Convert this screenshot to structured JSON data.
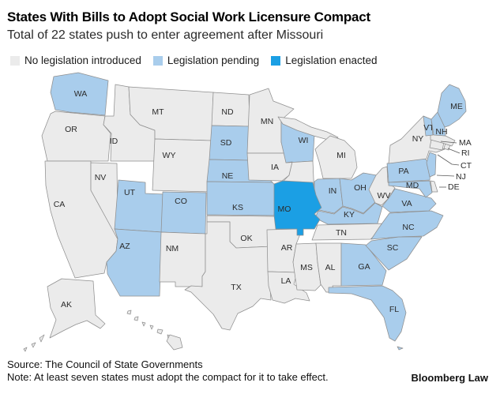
{
  "header": {
    "title": "States With Bills to Adopt Social Work Licensure Compact",
    "subtitle": "Total of 22 states push to enter agreement after Missouri"
  },
  "legend": {
    "items": [
      {
        "label": "No legislation introduced",
        "status": "none"
      },
      {
        "label": "Legislation pending",
        "status": "pending"
      },
      {
        "label": "Legislation enacted",
        "status": "enacted"
      }
    ]
  },
  "colors": {
    "none": "#ebebeb",
    "pending": "#a9cdec",
    "enacted": "#1b9fe4",
    "border": "#8f8f8f",
    "label": "#2b2b2b",
    "label_on_enacted": "#ffffff",
    "leader_line": "#5a5a5a"
  },
  "map": {
    "states": [
      {
        "abbr": "WA",
        "status": "pending"
      },
      {
        "abbr": "OR",
        "status": "none"
      },
      {
        "abbr": "CA",
        "status": "none"
      },
      {
        "abbr": "NV",
        "status": "none"
      },
      {
        "abbr": "ID",
        "status": "none"
      },
      {
        "abbr": "MT",
        "status": "none"
      },
      {
        "abbr": "WY",
        "status": "none"
      },
      {
        "abbr": "UT",
        "status": "pending"
      },
      {
        "abbr": "CO",
        "status": "pending"
      },
      {
        "abbr": "AZ",
        "status": "pending"
      },
      {
        "abbr": "NM",
        "status": "none"
      },
      {
        "abbr": "ND",
        "status": "none"
      },
      {
        "abbr": "SD",
        "status": "pending"
      },
      {
        "abbr": "NE",
        "status": "pending"
      },
      {
        "abbr": "KS",
        "status": "pending"
      },
      {
        "abbr": "OK",
        "status": "none"
      },
      {
        "abbr": "TX",
        "status": "none"
      },
      {
        "abbr": "MN",
        "status": "none"
      },
      {
        "abbr": "IA",
        "status": "none"
      },
      {
        "abbr": "AR",
        "status": "none"
      },
      {
        "abbr": "LA",
        "status": "none"
      },
      {
        "abbr": "WI",
        "status": "pending"
      },
      {
        "abbr": "IL",
        "status": "none"
      },
      {
        "abbr": "IN",
        "status": "pending"
      },
      {
        "abbr": "MI",
        "status": "none"
      },
      {
        "abbr": "OH",
        "status": "pending"
      },
      {
        "abbr": "KY",
        "status": "pending"
      },
      {
        "abbr": "TN",
        "status": "none"
      },
      {
        "abbr": "MS",
        "status": "none"
      },
      {
        "abbr": "AL",
        "status": "none"
      },
      {
        "abbr": "GA",
        "status": "pending"
      },
      {
        "abbr": "FL",
        "status": "pending"
      },
      {
        "abbr": "SC",
        "status": "pending"
      },
      {
        "abbr": "NC",
        "status": "pending"
      },
      {
        "abbr": "VA",
        "status": "pending"
      },
      {
        "abbr": "WV",
        "status": "none"
      },
      {
        "abbr": "PA",
        "status": "pending"
      },
      {
        "abbr": "NY",
        "status": "none"
      },
      {
        "abbr": "NJ",
        "status": "pending"
      },
      {
        "abbr": "DE",
        "status": "none"
      },
      {
        "abbr": "MD",
        "status": "pending"
      },
      {
        "abbr": "CT",
        "status": "none"
      },
      {
        "abbr": "RI",
        "status": "none"
      },
      {
        "abbr": "MA",
        "status": "none"
      },
      {
        "abbr": "VT",
        "status": "pending"
      },
      {
        "abbr": "NH",
        "status": "pending"
      },
      {
        "abbr": "ME",
        "status": "pending"
      },
      {
        "abbr": "MO",
        "status": "enacted"
      },
      {
        "abbr": "AK",
        "status": "none"
      },
      {
        "abbr": "HI",
        "status": "none"
      }
    ]
  },
  "footer": {
    "source": "Source: The Council of State Governments",
    "note": "Note: At least seven states must adopt the compact for it to take effect.",
    "brand": "Bloomberg Law"
  },
  "chart_data": {
    "type": "heatmap",
    "subtype": "us-choropleth",
    "title": "States With Bills to Adopt Social Work Licensure Compact",
    "subtitle": "Total of 22 states push to enter agreement after Missouri",
    "legend_position": "top",
    "categories": [
      "No legislation introduced",
      "Legislation pending",
      "Legislation enacted"
    ],
    "series": [
      {
        "name": "Legislation enacted",
        "count": 1,
        "states": [
          "MO"
        ]
      },
      {
        "name": "Legislation pending",
        "count": 22,
        "states": [
          "WA",
          "UT",
          "CO",
          "AZ",
          "SD",
          "NE",
          "KS",
          "WI",
          "IN",
          "OH",
          "KY",
          "PA",
          "NJ",
          "MD",
          "VA",
          "NC",
          "SC",
          "GA",
          "FL",
          "ME",
          "VT",
          "NH"
        ]
      },
      {
        "name": "No legislation introduced",
        "count": 27,
        "states": [
          "OR",
          "CA",
          "NV",
          "ID",
          "MT",
          "WY",
          "NM",
          "ND",
          "OK",
          "TX",
          "MN",
          "IA",
          "AR",
          "LA",
          "IL",
          "MI",
          "TN",
          "MS",
          "AL",
          "WV",
          "NY",
          "DE",
          "CT",
          "RI",
          "MA",
          "AK",
          "HI"
        ]
      }
    ],
    "source": "Source: The Council of State Governments",
    "note": "Note: At least seven states must adopt the compact for it to take effect."
  }
}
